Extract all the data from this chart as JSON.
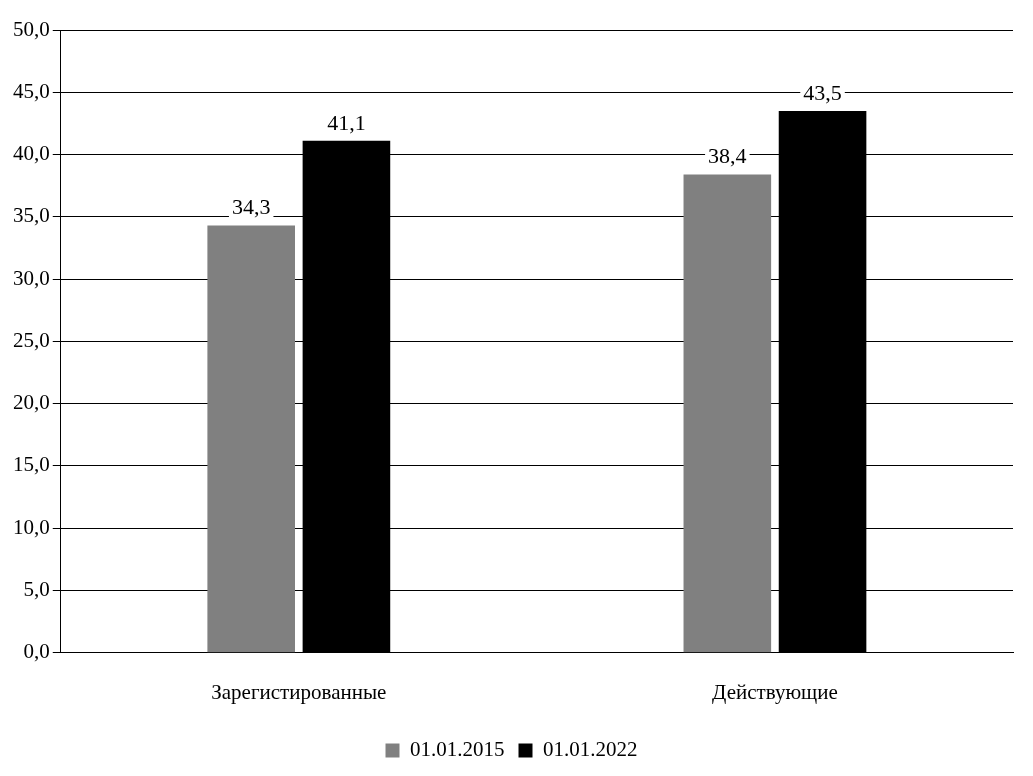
{
  "chart_data": {
    "type": "bar",
    "categories": [
      "Зарегистированные",
      "Действующие"
    ],
    "series": [
      {
        "name": "01.01.2015",
        "color": "#808080",
        "values": [
          34.3,
          38.4
        ],
        "value_labels": [
          "34,3",
          "38,4"
        ]
      },
      {
        "name": "01.01.2022",
        "color": "#000000",
        "values": [
          41.1,
          43.5
        ],
        "value_labels": [
          "41,1",
          "43,5"
        ]
      }
    ],
    "ylim": [
      0,
      50
    ],
    "yticks": [
      {
        "value": 0,
        "label": "0,0"
      },
      {
        "value": 5,
        "label": "5,0"
      },
      {
        "value": 10,
        "label": "10,0"
      },
      {
        "value": 15,
        "label": "15,0"
      },
      {
        "value": 20,
        "label": "20,0"
      },
      {
        "value": 25,
        "label": "25,0"
      },
      {
        "value": 30,
        "label": "30,0"
      },
      {
        "value": 35,
        "label": "35,0"
      },
      {
        "value": 40,
        "label": "40,0"
      },
      {
        "value": 45,
        "label": "45,0"
      },
      {
        "value": 50,
        "label": "50,0"
      }
    ],
    "grid": "y",
    "legend": "bottom"
  }
}
